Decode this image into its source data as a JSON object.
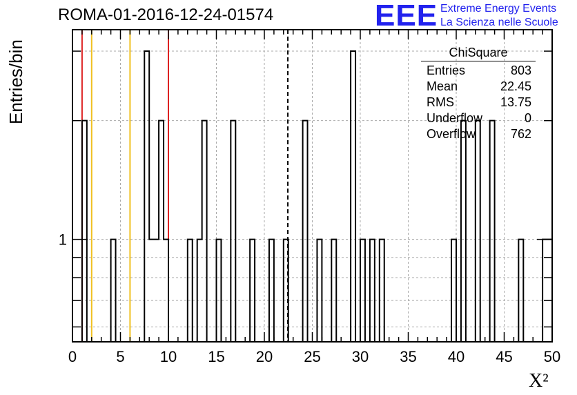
{
  "title": "ROMA-01-2016-12-24-01574",
  "logo": {
    "mark": "EEE",
    "line1": "Extreme Energy Events",
    "line2": "La Scienza nelle Scuole"
  },
  "colors": {
    "histogram": "#000000",
    "red_line": "#dd2222",
    "yellow_line": "#f0c020",
    "mean_line": "#000000",
    "grid": "#aaaaaa",
    "logo": "#2222ee"
  },
  "stats": {
    "title": "ChiSquare",
    "rows": [
      {
        "label": "Entries",
        "value": "803"
      },
      {
        "label": "Mean",
        "value": "22.45"
      },
      {
        "label": "RMS",
        "value": "13.75"
      },
      {
        "label": "Underflow",
        "value": "0"
      },
      {
        "label": "Overflow",
        "value": "762"
      }
    ]
  },
  "chart_data": {
    "type": "bar",
    "title": "ROMA-01-2016-12-24-01574",
    "xlabel": "X²",
    "ylabel": "Entries/bin",
    "xlim": [
      0,
      50
    ],
    "ylim": [
      0.55,
      3.4
    ],
    "yscale": "log",
    "bin_width": 0.5,
    "grid": true,
    "x_ticks": [
      0,
      5,
      10,
      15,
      20,
      25,
      30,
      35,
      40,
      45,
      50
    ],
    "y_tick_labels": [
      {
        "value": 1,
        "label": "1"
      }
    ],
    "bins": [
      {
        "x": 1.0,
        "count": 2
      },
      {
        "x": 4.0,
        "count": 1
      },
      {
        "x": 7.5,
        "count": 3
      },
      {
        "x": 8.0,
        "count": 1
      },
      {
        "x": 8.5,
        "count": 1
      },
      {
        "x": 9.0,
        "count": 2
      },
      {
        "x": 9.5,
        "count": 1
      },
      {
        "x": 12.0,
        "count": 1
      },
      {
        "x": 13.0,
        "count": 1
      },
      {
        "x": 13.5,
        "count": 2
      },
      {
        "x": 15.0,
        "count": 1
      },
      {
        "x": 16.5,
        "count": 2
      },
      {
        "x": 18.5,
        "count": 1
      },
      {
        "x": 20.5,
        "count": 1
      },
      {
        "x": 22.0,
        "count": 1
      },
      {
        "x": 24.0,
        "count": 2
      },
      {
        "x": 25.5,
        "count": 1
      },
      {
        "x": 27.0,
        "count": 1
      },
      {
        "x": 29.0,
        "count": 3
      },
      {
        "x": 30.0,
        "count": 1
      },
      {
        "x": 31.0,
        "count": 1
      },
      {
        "x": 32.0,
        "count": 1
      },
      {
        "x": 39.5,
        "count": 1
      },
      {
        "x": 40.5,
        "count": 2
      },
      {
        "x": 42.0,
        "count": 2
      },
      {
        "x": 43.5,
        "count": 2
      },
      {
        "x": 46.5,
        "count": 1
      },
      {
        "x": 49.0,
        "count": 1
      },
      {
        "x": 49.5,
        "count": 1
      }
    ],
    "vertical_lines": [
      {
        "x": 1.0,
        "color": "#dd2222"
      },
      {
        "x": 2.0,
        "color": "#f0c020"
      },
      {
        "x": 6.0,
        "color": "#f0c020"
      },
      {
        "x": 10.0,
        "color": "#dd2222"
      },
      {
        "x": 22.45,
        "color": "#000000",
        "style": "dashed"
      }
    ]
  }
}
